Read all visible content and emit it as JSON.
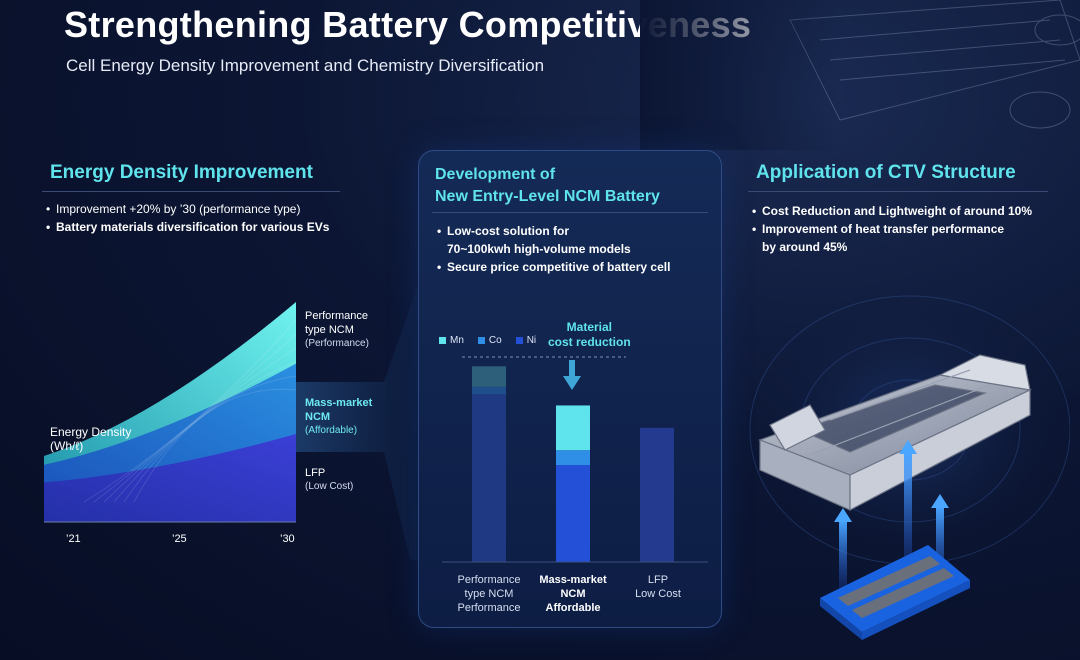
{
  "header": {
    "title": "Strengthening Battery Competitiveness",
    "subtitle": "Cell Energy Density Improvement and Chemistry Diversification"
  },
  "left": {
    "title": "Energy Density Improvement",
    "bullets": [
      "Improvement +20% by ’30 (performance type)",
      "Battery materials diversification for various EVs"
    ],
    "axis_label_line1": "Energy Density",
    "axis_label_line2": "(Wh/ℓ)",
    "series_labels": [
      {
        "line1": "Performance",
        "line2": "type NCM",
        "sub": "(Performance)"
      },
      {
        "line1": "Mass-market",
        "line2": "NCM",
        "sub": "(Affordable)"
      },
      {
        "line1": "LFP",
        "line2": "",
        "sub": "(Low Cost)"
      }
    ],
    "x_ticks": [
      "’21",
      "’25",
      "’30"
    ]
  },
  "center": {
    "title_line1": "Development of",
    "title_line2": "New Entry-Level NCM Battery",
    "bullets": [
      {
        "line1": "Low-cost solution for",
        "line2": "70~100kwh high-volume models"
      },
      {
        "line1": "Secure price competitive of battery cell",
        "line2": ""
      }
    ],
    "legend": [
      {
        "name": "Mn",
        "color": "#5fe3ec"
      },
      {
        "name": "Co",
        "color": "#2f8fe6"
      },
      {
        "name": "Ni",
        "color": "#2450d8"
      }
    ],
    "callout_line1": "Material",
    "callout_line2": "cost reduction",
    "categories": [
      {
        "line1": "Performance",
        "line2": "type NCM",
        "line3": "Performance"
      },
      {
        "line1": "Mass-market",
        "line2": "NCM",
        "line3": "Affordable"
      },
      {
        "line1": "LFP",
        "line2": "Low Cost",
        "line3": ""
      }
    ]
  },
  "right": {
    "title": "Application of CTV Structure",
    "bullets": [
      {
        "line1": "Cost Reduction and Lightweight of around 10%",
        "line2": ""
      },
      {
        "line1": "Improvement of heat transfer performance",
        "line2": "by around 45%"
      }
    ]
  },
  "chart_data": [
    {
      "type": "area",
      "title": "Energy Density Improvement",
      "ylabel": "Energy Density (Wh/ℓ)",
      "x": [
        2021,
        2025,
        2030
      ],
      "series": [
        {
          "name": "Performance type NCM (Performance)",
          "values": [
            30,
            52,
            100
          ]
        },
        {
          "name": "Mass-market NCM (Affordable)",
          "values": [
            26,
            40,
            72
          ]
        },
        {
          "name": "LFP (Low Cost)",
          "values": [
            18,
            25,
            40
          ]
        }
      ],
      "ylim": [
        0,
        100
      ]
    },
    {
      "type": "bar",
      "stacked": true,
      "categories": [
        "Performance type NCM Performance",
        "Mass-market NCM Affordable",
        "LFP Low Cost"
      ],
      "series": [
        {
          "name": "Ni",
          "values": [
            90,
            52,
            0
          ]
        },
        {
          "name": "Co",
          "values": [
            4,
            8,
            0
          ]
        },
        {
          "name": "Mn",
          "values": [
            11,
            24,
            0
          ]
        },
        {
          "name": "LFP",
          "values": [
            0,
            0,
            72
          ]
        }
      ],
      "ylim": [
        0,
        110
      ]
    }
  ]
}
